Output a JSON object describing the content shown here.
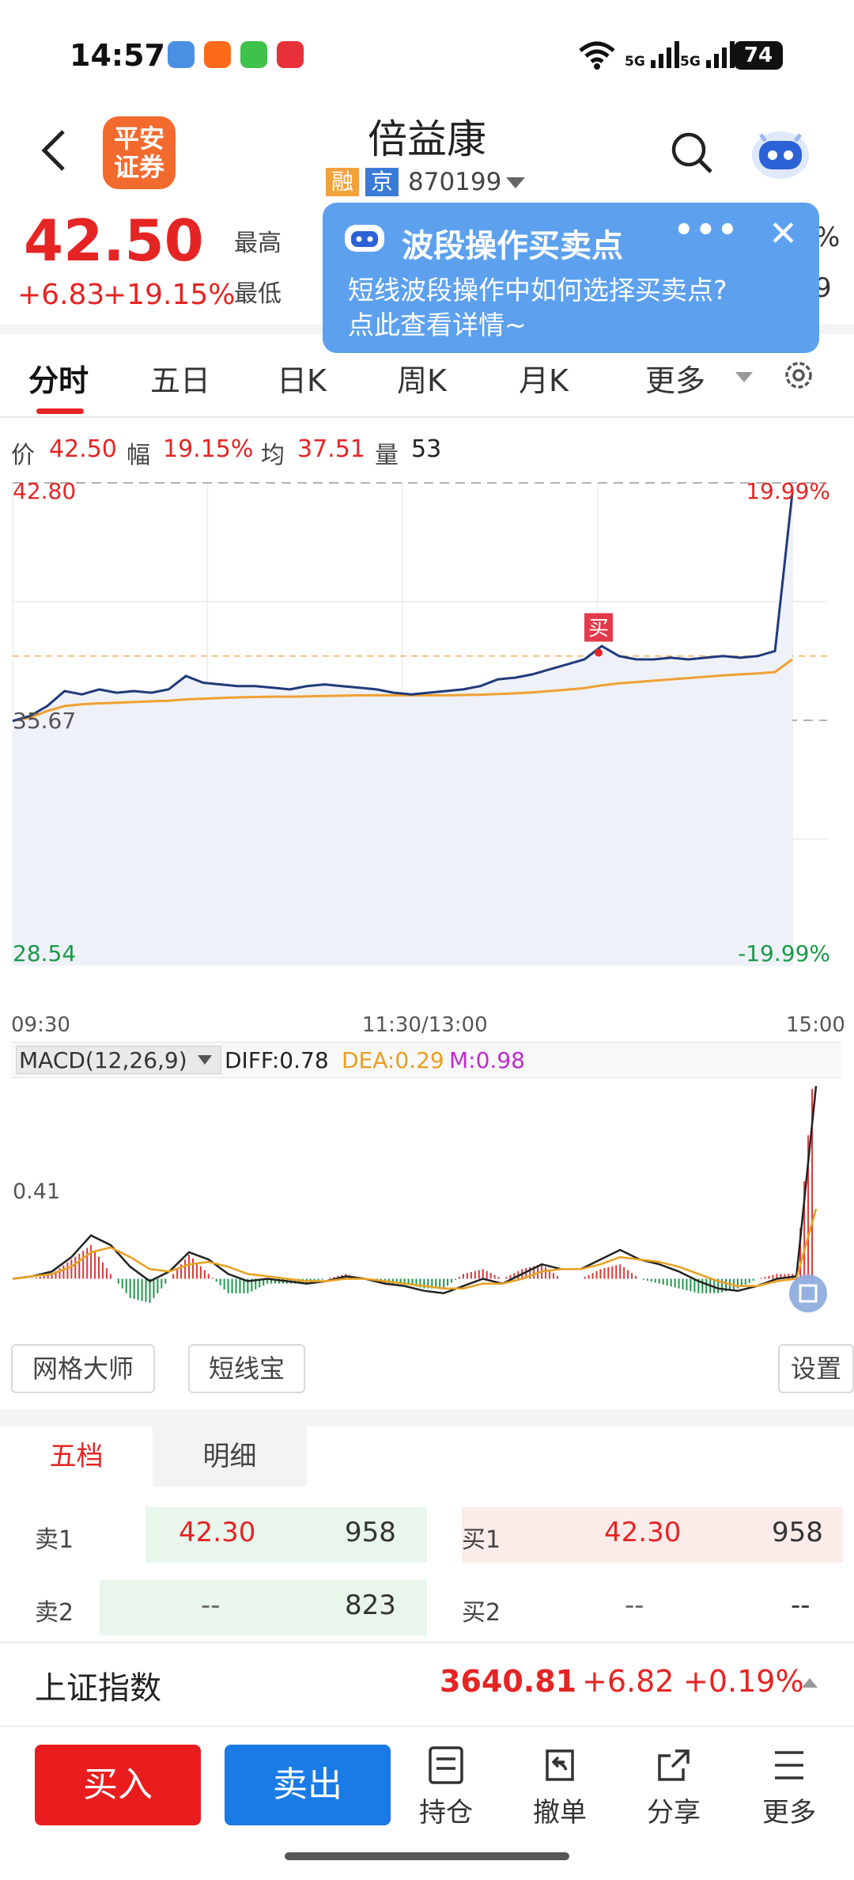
{
  "status_bar": {
    "time": "14:57",
    "signal1": "5G",
    "signal2": "5G",
    "battery": "74"
  },
  "header": {
    "logo_text": "平安\n证券",
    "stock_name": "倍益康",
    "tag_rong": "融",
    "tag_jing": "京",
    "stock_code": "870199"
  },
  "quote": {
    "price": "42.50",
    "change": "+6.83",
    "change_pct": "+19.15%",
    "label_high": "最高",
    "label_low": "最低",
    "obscured_right1": "%",
    "obscured_right2": "9"
  },
  "popup": {
    "title": "波段操作买卖点",
    "text_line1": "短线波段操作中如何选择买卖点?",
    "text_line2": "点此查看详情~",
    "dots": "•••",
    "close": "✕"
  },
  "tabs": [
    "分时",
    "五日",
    "日K",
    "周K",
    "月K",
    "更多"
  ],
  "info_line": {
    "price_label": "价",
    "price": "42.50",
    "range_label": "幅",
    "range": "19.15%",
    "avg_label": "均",
    "avg": "37.51",
    "vol_label": "量",
    "vol": "53"
  },
  "chart_data": [
    {
      "type": "line",
      "xlabel": "",
      "ylabel": "",
      "x_ticks": [
        "09:30",
        "11:30/13:00",
        "15:00"
      ],
      "y_labels_left": [
        "42.80",
        "35.67",
        "28.54"
      ],
      "y_labels_right": [
        "19.99%",
        "-19.99%"
      ],
      "ylim": [
        28.54,
        42.8
      ],
      "prev_close": 35.67,
      "buy_marker": {
        "label": "买",
        "price": 37.7
      },
      "series": [
        {
          "name": "价",
          "color": "#203a7a",
          "values": [
            35.65,
            35.8,
            36.1,
            36.55,
            36.45,
            36.6,
            36.5,
            36.55,
            36.5,
            36.6,
            37.0,
            36.8,
            36.75,
            36.7,
            36.7,
            36.65,
            36.6,
            36.7,
            36.75,
            36.7,
            36.65,
            36.6,
            36.5,
            36.45,
            36.5,
            36.55,
            36.6,
            36.7,
            36.9,
            36.95,
            37.05,
            37.2,
            37.35,
            37.5,
            37.9,
            37.6,
            37.5,
            37.5,
            37.55,
            37.5,
            37.55,
            37.6,
            37.55,
            37.6,
            37.75,
            42.5
          ]
        },
        {
          "name": "均",
          "color": "#f0a030",
          "values": [
            35.65,
            35.75,
            35.95,
            36.1,
            36.15,
            36.18,
            36.2,
            36.22,
            36.24,
            36.26,
            36.3,
            36.32,
            36.34,
            36.36,
            36.37,
            36.38,
            36.38,
            36.39,
            36.4,
            36.41,
            36.42,
            36.42,
            36.42,
            36.42,
            36.42,
            36.42,
            36.43,
            36.44,
            36.46,
            36.48,
            36.51,
            36.55,
            36.59,
            36.64,
            36.72,
            36.78,
            36.82,
            36.86,
            36.9,
            36.94,
            36.98,
            37.02,
            37.05,
            37.08,
            37.12,
            37.5
          ]
        }
      ]
    },
    {
      "type": "bar",
      "title": "MACD(12,26,9)",
      "legend": [
        {
          "name": "DIFF",
          "value": "0.78",
          "color": "#222222"
        },
        {
          "name": "DEA",
          "value": "0.29",
          "color": "#e8a020"
        },
        {
          "name": "M",
          "value": "0.98",
          "color": "#c02ad0"
        }
      ],
      "y_label": "0.41",
      "ylim": [
        -0.12,
        0.8
      ],
      "diff": [
        0.0,
        0.01,
        0.03,
        0.09,
        0.18,
        0.14,
        0.05,
        -0.01,
        0.03,
        0.11,
        0.08,
        0.02,
        -0.01,
        0.0,
        -0.01,
        -0.02,
        -0.01,
        0.01,
        0.0,
        -0.02,
        -0.03,
        -0.05,
        -0.06,
        -0.03,
        0.0,
        -0.02,
        0.02,
        0.06,
        0.04,
        0.04,
        0.08,
        0.12,
        0.08,
        0.06,
        0.03,
        -0.01,
        -0.04,
        -0.05,
        -0.03,
        0.0,
        0.01,
        0.8
      ],
      "dea": [
        0.0,
        0.01,
        0.02,
        0.05,
        0.11,
        0.13,
        0.09,
        0.04,
        0.03,
        0.06,
        0.07,
        0.05,
        0.02,
        0.01,
        0.0,
        -0.01,
        -0.01,
        0.0,
        0.0,
        -0.01,
        -0.02,
        -0.03,
        -0.04,
        -0.04,
        -0.02,
        -0.02,
        0.0,
        0.03,
        0.04,
        0.04,
        0.06,
        0.09,
        0.08,
        0.07,
        0.05,
        0.02,
        -0.01,
        -0.03,
        -0.03,
        -0.01,
        0.0,
        0.29
      ],
      "m": [
        0.0,
        0.0,
        0.02,
        0.08,
        0.14,
        0.02,
        -0.08,
        -0.1,
        0.0,
        0.1,
        0.02,
        -0.06,
        -0.06,
        -0.02,
        -0.02,
        -0.02,
        0.0,
        0.02,
        0.0,
        -0.02,
        -0.02,
        -0.04,
        -0.04,
        0.02,
        0.04,
        0.0,
        0.04,
        0.06,
        0.0,
        0.0,
        0.04,
        0.06,
        0.0,
        -0.02,
        -0.04,
        -0.06,
        -0.06,
        -0.04,
        0.0,
        0.02,
        0.02,
        0.98
      ]
    }
  ],
  "tools": {
    "grid_master": "网格大师",
    "short_line": "短线宝",
    "settings": "设置"
  },
  "order_book": {
    "tab_a": "五档",
    "tab_b": "明细",
    "sell": [
      {
        "label": "卖1",
        "price": "42.30",
        "vol": "958"
      },
      {
        "label": "卖2",
        "price": "--",
        "vol": "823"
      }
    ],
    "buy": [
      {
        "label": "买1",
        "price": "42.30",
        "vol": "958"
      },
      {
        "label": "买2",
        "price": "--",
        "vol": "--"
      }
    ]
  },
  "index_bar": {
    "name": "上证指数",
    "value": "3640.81",
    "change": "+6.82",
    "pct": "+0.19%"
  },
  "bottom_nav": {
    "buy": "买入",
    "sell": "卖出",
    "hold": "持仓",
    "cancel": "撤单",
    "share": "分享",
    "more": "更多"
  },
  "colors": {
    "up": "#e52424",
    "down": "#1a9a4a",
    "accent": "#1a7be6"
  }
}
